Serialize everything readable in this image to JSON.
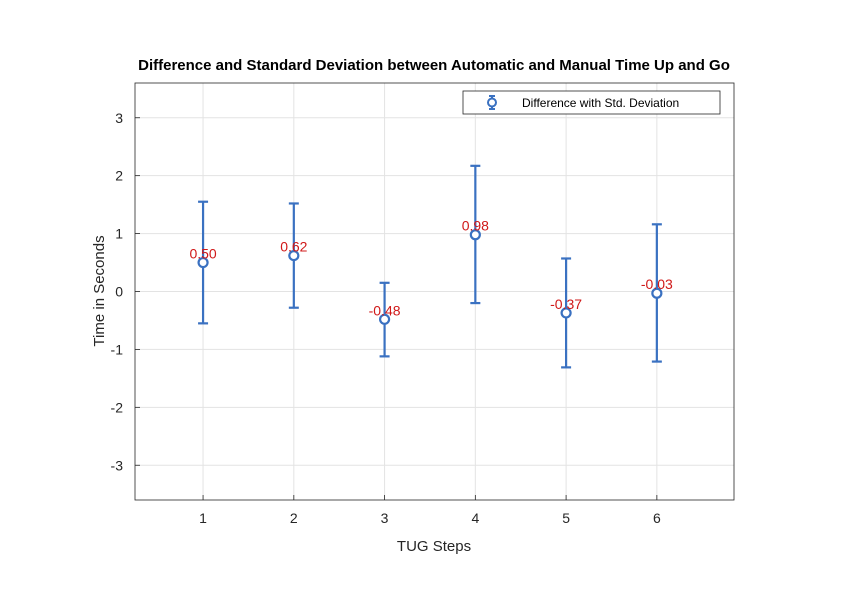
{
  "chart_data": {
    "type": "errorbar",
    "title": "Difference and Standard Deviation between Automatic and Manual Time Up and Go",
    "xlabel": "TUG Steps",
    "ylabel": "Time in Seconds",
    "xlim": [
      0.25,
      6.85
    ],
    "ylim": [
      -3.6,
      3.6
    ],
    "xticks": [
      1,
      2,
      3,
      4,
      5,
      6
    ],
    "yticks": [
      -3,
      -2,
      -1,
      0,
      1,
      2,
      3
    ],
    "grid": true,
    "legend_position": "top-right",
    "series": [
      {
        "name": "Difference with Std. Deviation",
        "color": "#3a71c1",
        "x": [
          1,
          2,
          3,
          4,
          5,
          6
        ],
        "y": [
          0.5,
          0.62,
          -0.48,
          0.98,
          -0.37,
          -0.03
        ],
        "y_upper": [
          1.55,
          1.52,
          0.15,
          2.17,
          0.57,
          1.16
        ],
        "y_lower": [
          -0.55,
          -0.28,
          -1.12,
          -0.2,
          -1.31,
          -1.21
        ]
      }
    ],
    "data_labels": [
      "0.50",
      "0.62",
      "-0.48",
      "0.98",
      "-0.37",
      "-0.03"
    ],
    "label_color": "#d01818"
  }
}
